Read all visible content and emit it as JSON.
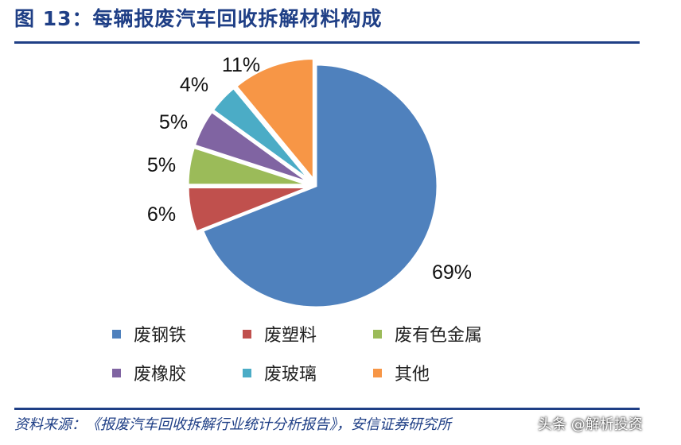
{
  "header": {
    "title": "图 13：每辆报废汽车回收拆解材料构成"
  },
  "chart_data": {
    "type": "pie",
    "start_angle_deg": 0,
    "direction": "clockwise",
    "slices": [
      {
        "name": "废钢铁",
        "value": 69,
        "label": "69%",
        "color": "#4f81bd"
      },
      {
        "name": "废塑料",
        "value": 6,
        "label": "6%",
        "color": "#c0504d"
      },
      {
        "name": "废有色金属",
        "value": 5,
        "label": "5%",
        "color": "#9bbb59"
      },
      {
        "name": "废橡胶",
        "value": 5,
        "label": "5%",
        "color": "#8064a2"
      },
      {
        "name": "废玻璃",
        "value": 4,
        "label": "4%",
        "color": "#4bacc6"
      },
      {
        "name": "其他",
        "value": 11,
        "label": "11%",
        "color": "#f79646"
      }
    ],
    "legend_position": "bottom"
  },
  "footer": {
    "source": "资料来源：《报废汽车回收拆解行业统计分析报告》，安信证券研究所",
    "watermark": "头条 @解析投资"
  }
}
